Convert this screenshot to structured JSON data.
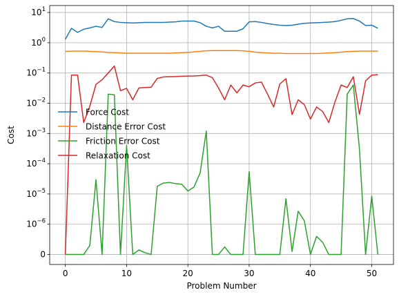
{
  "chart_data": {
    "type": "line",
    "title": "",
    "xlabel": "Problem Number",
    "ylabel": "Cost",
    "xlim": [
      -2.55,
      53.55
    ],
    "x_ticks": [
      0,
      10,
      20,
      30,
      40,
      50
    ],
    "y_scale": "symlog",
    "y_linthresh": 1e-06,
    "y_ticks": [
      {
        "value": 0,
        "label": "0"
      },
      {
        "value": 1e-06,
        "label": "10^-6"
      },
      {
        "value": 1e-05,
        "label": "10^-5"
      },
      {
        "value": 0.0001,
        "label": "10^-4"
      },
      {
        "value": 0.001,
        "label": "10^-3"
      },
      {
        "value": 0.01,
        "label": "10^-2"
      },
      {
        "value": 0.1,
        "label": "10^-1"
      },
      {
        "value": 1,
        "label": "10^0"
      },
      {
        "value": 10,
        "label": "10^1"
      }
    ],
    "grid": true,
    "legend_position": "center-left",
    "x": [
      0,
      1,
      2,
      3,
      4,
      5,
      6,
      7,
      8,
      9,
      10,
      11,
      12,
      13,
      14,
      15,
      16,
      17,
      18,
      19,
      20,
      21,
      22,
      23,
      24,
      25,
      26,
      27,
      28,
      29,
      30,
      31,
      32,
      33,
      34,
      35,
      36,
      37,
      38,
      39,
      40,
      41,
      42,
      43,
      44,
      45,
      46,
      47,
      48,
      49,
      50,
      51
    ],
    "series": [
      {
        "name": "Force Cost",
        "color": "#1f77b4",
        "values": [
          1.3,
          3.0,
          2.2,
          2.8,
          3.1,
          3.5,
          3.2,
          6.2,
          5.0,
          4.7,
          4.6,
          4.5,
          4.6,
          4.7,
          4.7,
          4.7,
          4.7,
          4.8,
          4.9,
          5.2,
          5.2,
          5.2,
          4.6,
          3.5,
          3.1,
          3.5,
          2.4,
          2.4,
          2.4,
          2.9,
          4.9,
          5.0,
          4.7,
          4.3,
          4.0,
          3.8,
          3.7,
          3.8,
          4.1,
          4.4,
          4.5,
          4.6,
          4.7,
          4.8,
          5.0,
          5.5,
          6.2,
          6.3,
          5.2,
          3.7,
          3.8,
          3.0
        ]
      },
      {
        "name": "Distance Error Cost",
        "color": "#ff7f0e",
        "values": [
          0.52,
          0.53,
          0.53,
          0.53,
          0.52,
          0.51,
          0.5,
          0.48,
          0.47,
          0.46,
          0.45,
          0.45,
          0.45,
          0.45,
          0.45,
          0.45,
          0.45,
          0.45,
          0.46,
          0.47,
          0.48,
          0.5,
          0.52,
          0.54,
          0.55,
          0.55,
          0.55,
          0.55,
          0.55,
          0.54,
          0.52,
          0.49,
          0.47,
          0.46,
          0.45,
          0.45,
          0.44,
          0.44,
          0.44,
          0.44,
          0.44,
          0.44,
          0.45,
          0.46,
          0.47,
          0.49,
          0.51,
          0.52,
          0.53,
          0.53,
          0.53,
          0.53
        ]
      },
      {
        "name": "Friction Error Cost",
        "color": "#2ca02c",
        "values": [
          0,
          0,
          0,
          0,
          3e-07,
          3e-05,
          0,
          0.02,
          0.019,
          0,
          0.0004,
          0,
          1.5e-07,
          6e-08,
          0,
          1.8e-05,
          2.3e-05,
          2.4e-05,
          2.2e-05,
          2.1e-05,
          1.25e-05,
          1.7e-05,
          5e-05,
          0.0012,
          0,
          0,
          2.5e-07,
          0,
          0,
          0,
          5.5e-05,
          0,
          0,
          0,
          0,
          0,
          7e-06,
          1e-07,
          2.7e-06,
          1.3e-06,
          0,
          6e-07,
          4e-07,
          0,
          0,
          0,
          0.02,
          0.04,
          0.0003,
          0,
          8.5e-06,
          0
        ]
      },
      {
        "name": "Relaxation Cost",
        "color": "#d62728",
        "values": [
          0,
          0.085,
          0.085,
          0.0023,
          0.008,
          0.042,
          0.06,
          0.1,
          0.17,
          0.026,
          0.031,
          0.013,
          0.032,
          0.033,
          0.034,
          0.066,
          0.074,
          0.075,
          0.076,
          0.078,
          0.079,
          0.08,
          0.082,
          0.085,
          0.07,
          0.032,
          0.013,
          0.04,
          0.022,
          0.04,
          0.035,
          0.047,
          0.05,
          0.02,
          0.0075,
          0.043,
          0.065,
          0.0042,
          0.013,
          0.009,
          0.003,
          0.0075,
          0.0053,
          0.0023,
          0.011,
          0.04,
          0.033,
          0.075,
          0.0043,
          0.055,
          0.085,
          0.088
        ]
      }
    ]
  }
}
